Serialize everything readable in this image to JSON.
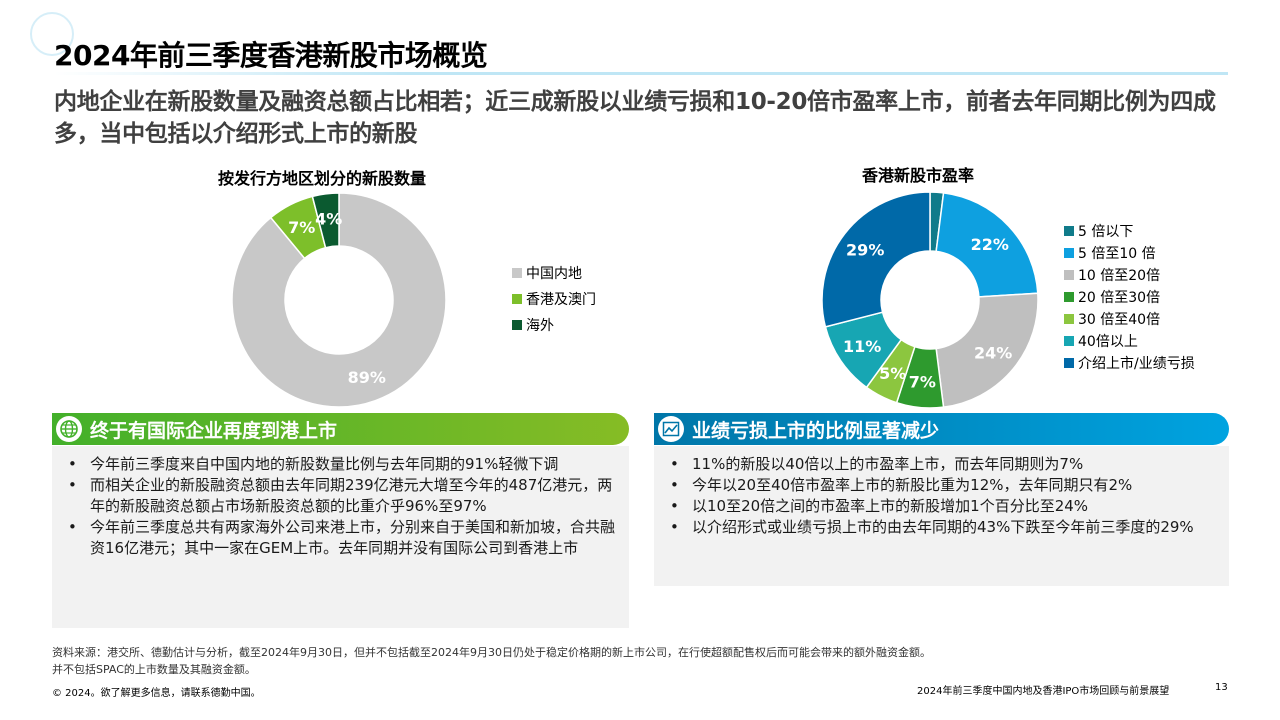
{
  "title": "2024年前三季度香港新股市场概览",
  "subtitle": "内地企业在新股数量及融资总额占比相若；近三成新股以业绩亏损和10-20倍市盈率上市，前者去年同期比例为四成多，当中包括以介绍形式上市的新股",
  "chart_data": [
    {
      "type": "pie",
      "title": "按发行方地区划分的新股数量",
      "categories": [
        "中国内地",
        "香港及澳门",
        "海外"
      ],
      "values": [
        89,
        7,
        4
      ],
      "labels": [
        "89%",
        "7%",
        "4%"
      ],
      "colors": [
        "#c8c8c8",
        "#7dbf2a",
        "#0b5a30"
      ],
      "legend_position": "right"
    },
    {
      "type": "pie",
      "title": "香港新股市盈率",
      "categories": [
        "5 倍以下",
        "5 倍至10 倍",
        "10 倍至20倍",
        "20 倍至30倍",
        "30 倍至40倍",
        "40倍以上",
        "介绍上市/业绩亏损"
      ],
      "values": [
        2,
        22,
        24,
        7,
        5,
        11,
        29
      ],
      "labels": [
        "",
        "22%",
        "24%",
        "7%",
        "5%",
        "11%",
        "29%"
      ],
      "colors": [
        "#107b8a",
        "#0ea0e0",
        "#bfbfbf",
        "#2e9a2e",
        "#8cc63f",
        "#17a6b3",
        "#0069a8"
      ],
      "legend_position": "right"
    }
  ],
  "banner1": {
    "label": "终于有国际企业再度到港上市",
    "icon": "globe-icon"
  },
  "banner2": {
    "label": "业绩亏损上市的比例显著减少",
    "icon": "chart-line-icon"
  },
  "panel1": {
    "bullets": [
      "今年前三季度来自中国内地的新股数量比例与去年同期的91%轻微下调",
      "而相关企业的新股融资总额由去年同期239亿港元大增至今年的487亿港元，两年的新股融资总额占市场新股资总额的比重介乎96%至97%",
      "今年前三季度总共有两家海外公司来港上市，分别来自于美国和新加坡，合共融资16亿港元；其中一家在GEM上市。去年同期并没有国际公司到香港上市"
    ]
  },
  "panel2": {
    "bullets": [
      "11%的新股以40倍以上的市盈率上市，而去年同期则为7%",
      "今年以20至40倍市盈率上市的新股比重为12%，去年同期只有2%",
      "以10至20倍之间的市盈率上市的新股增加1个百分比至24%",
      "以介绍形式或业绩亏损上市的由去年同期的43%下跌至今年前三季度的29%"
    ]
  },
  "footnote": {
    "line1": "资料来源：港交所、德勤估计与分析，截至2024年9月30日，但并不包括截至2024年9月30日仍处于稳定价格期的新上市公司，在行使超额配售权后而可能会带来的额外融资金额。",
    "line2": "并不包括SPAC的上市数量及其融资金额。"
  },
  "copyright": "© 2024。欲了解更多信息，请联系德勤中国。",
  "report_name": "2024年前三季度中国内地及香港IPO市场回顾与前景展望",
  "page_number": "13"
}
